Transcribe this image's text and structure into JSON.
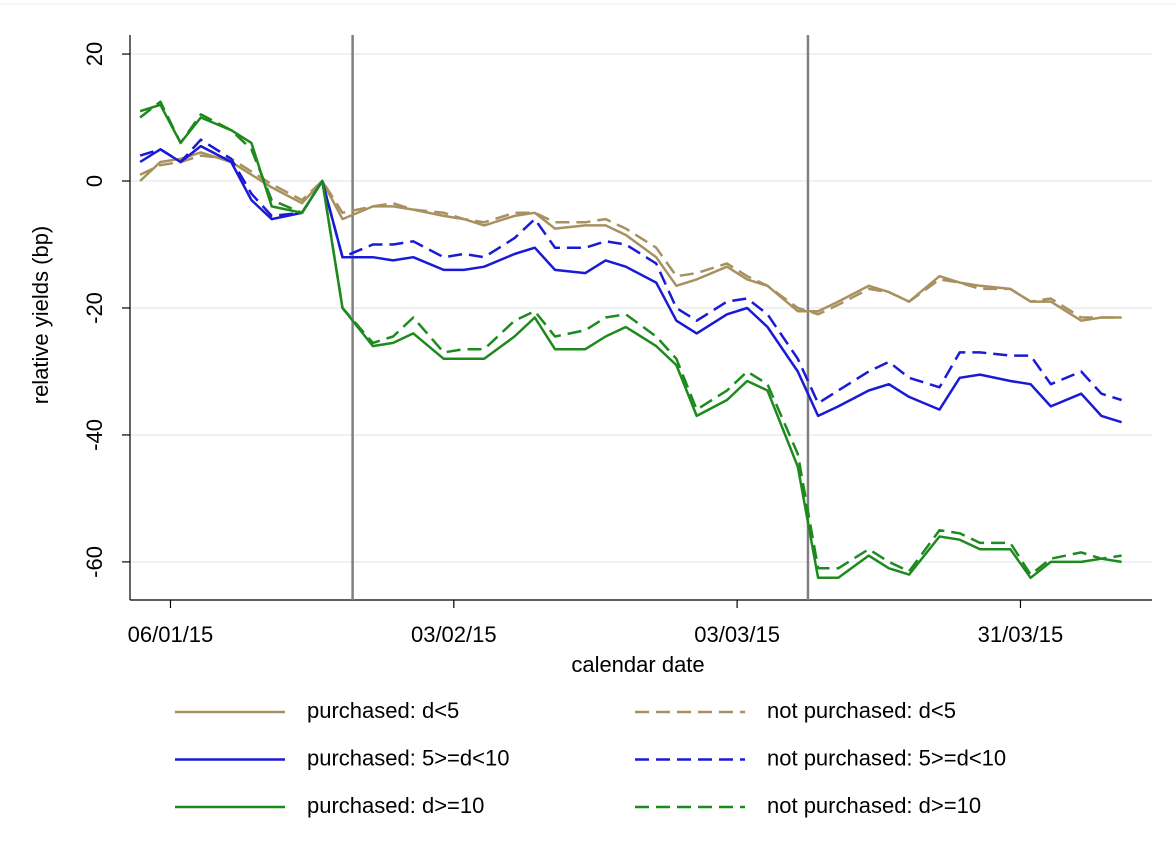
{
  "chart_data": {
    "type": "line",
    "x_label": "calendar date",
    "y_label": "relative yields (bp)",
    "x": [
      "2015-01-03",
      "2015-01-05",
      "2015-01-07",
      "2015-01-09",
      "2015-01-12",
      "2015-01-14",
      "2015-01-16",
      "2015-01-19",
      "2015-01-21",
      "2015-01-23",
      "2015-01-26",
      "2015-01-28",
      "2015-01-30",
      "2015-02-02",
      "2015-02-04",
      "2015-02-06",
      "2015-02-09",
      "2015-02-11",
      "2015-02-13",
      "2015-02-16",
      "2015-02-18",
      "2015-02-20",
      "2015-02-23",
      "2015-02-25",
      "2015-02-27",
      "2015-03-02",
      "2015-03-04",
      "2015-03-06",
      "2015-03-09",
      "2015-03-11",
      "2015-03-13",
      "2015-03-16",
      "2015-03-18",
      "2015-03-20",
      "2015-03-23",
      "2015-03-25",
      "2015-03-27",
      "2015-03-30",
      "2015-04-01",
      "2015-04-03",
      "2015-04-06",
      "2015-04-08",
      "2015-04-10"
    ],
    "series": [
      {
        "name": "purchased: d<5",
        "color": "#a8915f",
        "dashed": false,
        "values": [
          0,
          3,
          3.5,
          4.5,
          3,
          1,
          -1,
          -3.5,
          0,
          -6,
          -4,
          -4,
          -4.5,
          -5.5,
          -6,
          -7,
          -5.5,
          -5,
          -7.5,
          -7,
          -7,
          -8.5,
          -12,
          -16.5,
          -15.5,
          -13.5,
          -15.5,
          -16.5,
          -20.5,
          -20.5,
          -19,
          -16.5,
          -17.5,
          -19,
          -15,
          -16,
          -16.5,
          -17,
          -19,
          -19,
          -22,
          -21.5,
          -21.5
        ]
      },
      {
        "name": "not purchased: d<5",
        "color": "#a8915f",
        "dashed": true,
        "values": [
          1,
          2.5,
          3,
          4,
          3.5,
          1.5,
          -0.5,
          -3,
          0,
          -5,
          -4,
          -3.5,
          -4.5,
          -5,
          -6,
          -6.5,
          -5,
          -5,
          -6.5,
          -6.5,
          -6,
          -7.5,
          -10.5,
          -15,
          -14.5,
          -13,
          -15,
          -16.5,
          -20,
          -21,
          -19.5,
          -17,
          -17.5,
          -19,
          -15.5,
          -16,
          -17,
          -17,
          -19,
          -18.5,
          -21.5,
          -21.5,
          -21.5
        ]
      },
      {
        "name": "purchased: 5>=d<10",
        "color": "#1a1ad6",
        "dashed": false,
        "values": [
          3,
          5,
          3,
          5.5,
          3,
          -3,
          -6,
          -5,
          0,
          -12,
          -12,
          -12.5,
          -12,
          -14,
          -14,
          -13.5,
          -11.5,
          -10.5,
          -14,
          -14.5,
          -12.5,
          -13.5,
          -16,
          -22,
          -24,
          -21,
          -20,
          -23,
          -30,
          -37,
          -35.5,
          -33,
          -32,
          -34,
          -36,
          -31,
          -30.5,
          -31.5,
          -32,
          -35.5,
          -33.5,
          -37,
          -38
        ]
      },
      {
        "name": "not purchased: 5>=d<10",
        "color": "#1a1ad6",
        "dashed": true,
        "values": [
          4,
          5,
          3,
          6.5,
          3.5,
          -2,
          -5.5,
          -5,
          0,
          -12,
          -10,
          -10,
          -9.5,
          -12,
          -11.5,
          -12,
          -9,
          -6,
          -10.5,
          -10.5,
          -9.5,
          -10,
          -13,
          -20,
          -22,
          -19,
          -18.5,
          -21,
          -28,
          -35,
          -33,
          -30,
          -28.5,
          -31,
          -32.5,
          -27,
          -27,
          -27.5,
          -27.5,
          -32,
          -30,
          -33.5,
          -34.5
        ]
      },
      {
        "name": "purchased: d>=10",
        "color": "#1e8a1e",
        "dashed": false,
        "values": [
          11,
          12,
          6,
          10,
          8,
          6,
          -4,
          -5,
          0,
          -20,
          -26,
          -25.5,
          -24,
          -28,
          -28,
          -28,
          -24.5,
          -21.5,
          -26.5,
          -26.5,
          -24.5,
          -23,
          -26,
          -29,
          -37,
          -34.5,
          -31.5,
          -33,
          -45,
          -62.5,
          -62.5,
          -59,
          -61,
          -62,
          -56,
          -56.5,
          -58,
          -58,
          -62.5,
          -60,
          -60,
          -59.5,
          -60
        ]
      },
      {
        "name": "not purchased: d>=10",
        "color": "#1e8a1e",
        "dashed": true,
        "values": [
          10,
          12.5,
          6,
          10.5,
          8,
          5,
          -3,
          -5,
          0,
          -20,
          -25.5,
          -24.5,
          -21.5,
          -27,
          -26.5,
          -26.5,
          -22,
          -20.5,
          -24.5,
          -23.5,
          -21.5,
          -21,
          -24.5,
          -28,
          -36,
          -33,
          -30,
          -32,
          -43,
          -61,
          -61,
          -58,
          -60,
          -61.5,
          -55,
          -55.5,
          -57,
          -57,
          -62,
          -59.5,
          -58.5,
          -59.5,
          -59
        ]
      }
    ],
    "xlim": [
      "2015-01-02",
      "2015-04-13"
    ],
    "xticks": [
      {
        "value": "2015-01-06",
        "label": "06/01/15"
      },
      {
        "value": "2015-02-03",
        "label": "03/02/15"
      },
      {
        "value": "2015-03-03",
        "label": "03/03/15"
      },
      {
        "value": "2015-03-31",
        "label": "31/03/15"
      }
    ],
    "ylim": [
      -66,
      23
    ],
    "yticks": [
      20,
      0,
      -20,
      -40,
      -60
    ],
    "vlines": [
      "2015-01-24",
      "2015-03-10"
    ],
    "vline_color": "#808080",
    "grid": true,
    "legend": "bottom"
  }
}
